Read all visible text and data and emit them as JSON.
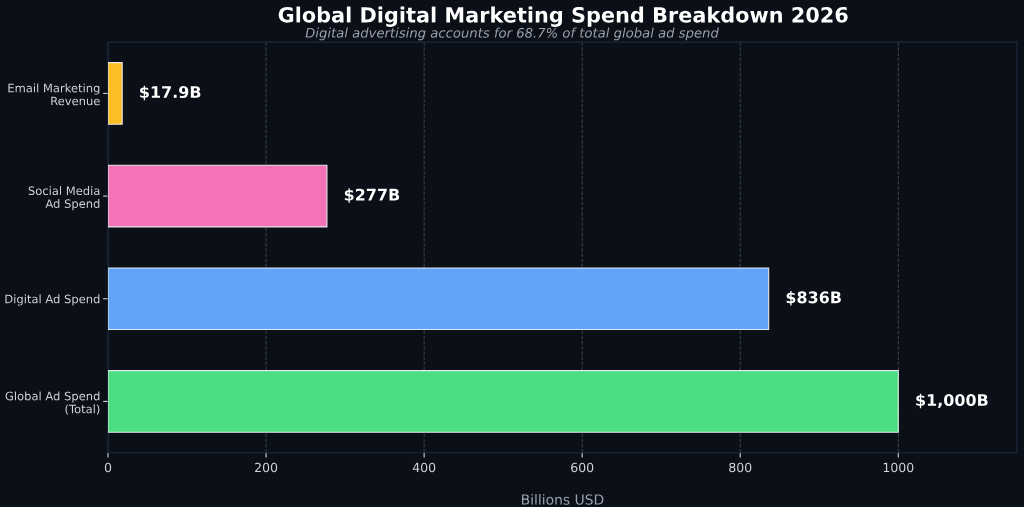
{
  "chart_data": {
    "type": "bar",
    "orientation": "horizontal",
    "title": "Global Digital Marketing Spend Breakdown 2026",
    "subtitle": "Digital advertising accounts for 68.7% of total global ad spend",
    "xlabel": "Billions USD",
    "categories": [
      "Email Marketing\nRevenue",
      "Social Media\nAd Spend",
      "Digital Ad Spend",
      "Global Ad Spend\n(Total)"
    ],
    "values": [
      17.9,
      277,
      836,
      1000
    ],
    "colors": [
      "#fbbf24",
      "#f472b6",
      "#60a5fa",
      "#4ade80"
    ],
    "value_labels": [
      "$17.9B",
      "$277B",
      "$836B",
      "$1,000B"
    ],
    "xlim": [
      0,
      1150
    ],
    "xticks": [
      0,
      200,
      400,
      600,
      800,
      1000
    ],
    "grid": "x",
    "legend": false
  }
}
